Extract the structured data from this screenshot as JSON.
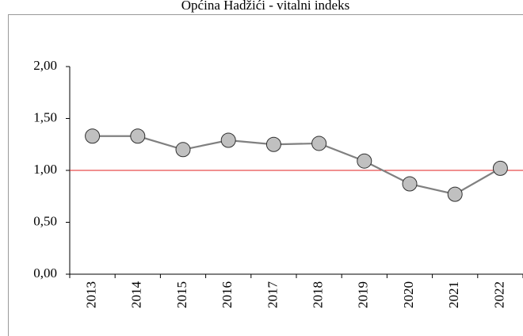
{
  "chart_data": {
    "type": "line",
    "title": "Općina Hadžići - vitalni indeks",
    "categories": [
      "2013",
      "2014",
      "2015",
      "2016",
      "2017",
      "2018",
      "2019",
      "2020",
      "2021",
      "2022"
    ],
    "series": [
      {
        "name": "vitalni indeks",
        "color": "#808080",
        "marker_color": "#c0c0c0",
        "values": [
          1.33,
          1.33,
          1.2,
          1.29,
          1.25,
          1.26,
          1.09,
          0.87,
          0.77,
          1.02
        ]
      }
    ],
    "ylim": [
      0,
      2
    ],
    "yticks": [
      {
        "value": 0,
        "label": "0,00"
      },
      {
        "value": 0.5,
        "label": "0,50"
      },
      {
        "value": 1,
        "label": "1,00"
      },
      {
        "value": 1.5,
        "label": "1,50"
      },
      {
        "value": 2,
        "label": "2,00"
      }
    ],
    "reference_line": {
      "value": 1,
      "color": "#e02020"
    },
    "grid": false
  }
}
